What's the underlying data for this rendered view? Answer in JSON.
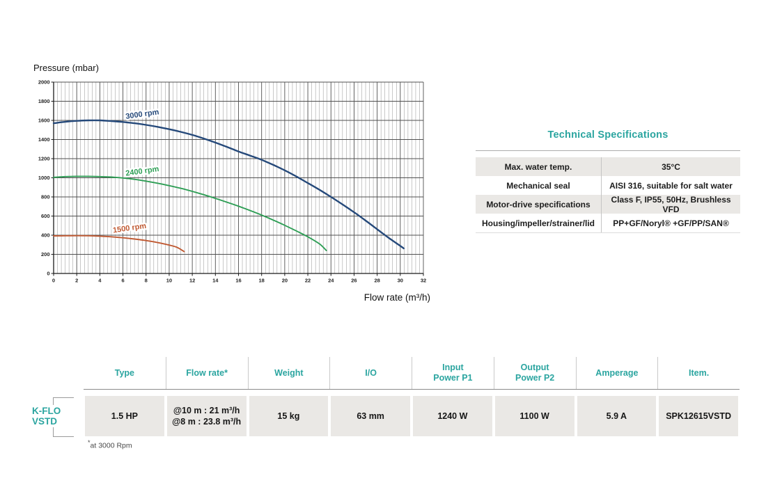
{
  "colors": {
    "accent_teal": "#2ba5a0",
    "row_gray": "#eae8e5",
    "curve_blue": "#25497a",
    "curve_green": "#2e9e55",
    "curve_orange": "#c05a33"
  },
  "chart_data": {
    "type": "line",
    "title": "Pressure (mbar)",
    "xlabel": "Flow rate (m³/h)",
    "ylabel": "Pressure (mbar)",
    "xlim": [
      0,
      32
    ],
    "ylim": [
      0,
      2000
    ],
    "x_ticks": [
      0,
      2,
      4,
      6,
      8,
      10,
      12,
      14,
      16,
      18,
      20,
      22,
      24,
      26,
      28,
      30,
      32
    ],
    "y_ticks": [
      0,
      200,
      400,
      600,
      800,
      1000,
      1200,
      1400,
      1600,
      1800,
      2000
    ],
    "x_minor_step": 0.3333,
    "grid": true,
    "legend": "inline-curve-labels",
    "series": [
      {
        "name": "3000 rpm",
        "color": "#25497a",
        "label_pos": [
          7.7,
          1640
        ],
        "points": [
          [
            0,
            1570
          ],
          [
            1,
            1585
          ],
          [
            2,
            1595
          ],
          [
            3,
            1600
          ],
          [
            4,
            1600
          ],
          [
            5,
            1593
          ],
          [
            6,
            1583
          ],
          [
            7,
            1570
          ],
          [
            8,
            1553
          ],
          [
            9,
            1532
          ],
          [
            10,
            1508
          ],
          [
            11,
            1480
          ],
          [
            12,
            1448
          ],
          [
            13,
            1410
          ],
          [
            14,
            1368
          ],
          [
            15,
            1323
          ],
          [
            16,
            1275
          ],
          [
            17,
            1232
          ],
          [
            18,
            1188
          ],
          [
            19,
            1135
          ],
          [
            20,
            1078
          ],
          [
            21,
            1014
          ],
          [
            22,
            945
          ],
          [
            23,
            875
          ],
          [
            24,
            800
          ],
          [
            25,
            722
          ],
          [
            26,
            640
          ],
          [
            27,
            553
          ],
          [
            28,
            462
          ],
          [
            29,
            372
          ],
          [
            30,
            288
          ],
          [
            30.3,
            262
          ]
        ]
      },
      {
        "name": "2400 rpm",
        "color": "#2e9e55",
        "label_pos": [
          7.7,
          1045
        ],
        "points": [
          [
            0,
            1005
          ],
          [
            1,
            1012
          ],
          [
            2,
            1015
          ],
          [
            3,
            1015
          ],
          [
            4,
            1012
          ],
          [
            5,
            1007
          ],
          [
            6,
            998
          ],
          [
            7,
            984
          ],
          [
            8,
            965
          ],
          [
            9,
            943
          ],
          [
            10,
            918
          ],
          [
            11,
            890
          ],
          [
            12,
            858
          ],
          [
            13,
            823
          ],
          [
            14,
            785
          ],
          [
            15,
            745
          ],
          [
            16,
            703
          ],
          [
            17,
            658
          ],
          [
            18,
            610
          ],
          [
            19,
            558
          ],
          [
            20,
            503
          ],
          [
            21,
            445
          ],
          [
            22,
            383
          ],
          [
            23,
            310
          ],
          [
            23.6,
            240
          ]
        ]
      },
      {
        "name": "1500 rpm",
        "color": "#c05a33",
        "label_pos": [
          6.6,
          450
        ],
        "points": [
          [
            0,
            393
          ],
          [
            1,
            394
          ],
          [
            2,
            395
          ],
          [
            3,
            394
          ],
          [
            4,
            390
          ],
          [
            5,
            383
          ],
          [
            6,
            373
          ],
          [
            7,
            360
          ],
          [
            8,
            344
          ],
          [
            9,
            323
          ],
          [
            10,
            297
          ],
          [
            10.7,
            272
          ],
          [
            11.3,
            228
          ]
        ]
      }
    ]
  },
  "tech_specs": {
    "title": "Technical Specifications",
    "rows": [
      {
        "label": "Max. water temp.",
        "value": "35°C"
      },
      {
        "label": "Mechanical seal",
        "value": "AISI 316, suitable for salt water"
      },
      {
        "label": "Motor-drive specifications",
        "value": "Class F, IP55, 50Hz, Brushless VFD"
      },
      {
        "label": "Housing/impeller/strainer/lid",
        "value": "PP+GF/Noryl® +GF/PP/SAN®"
      }
    ]
  },
  "product_table": {
    "row_label_line1": "K-FLO",
    "row_label_line2": "VSTD",
    "headers": [
      "Type",
      "Flow rate*",
      "Weight",
      "I/O",
      "Input\nPower P1",
      "Output\nPower P2",
      "Amperage",
      "Item."
    ],
    "values": [
      "1.5 HP",
      "@10 m : 21 m³/h\n@8 m : 23.8 m³/h",
      "15 kg",
      "63 mm",
      "1240 W",
      "1100 W",
      "5.9 A",
      "SPK12615VSTD"
    ],
    "footnote_marker": "*",
    "footnote_text": "at 3000 Rpm"
  }
}
